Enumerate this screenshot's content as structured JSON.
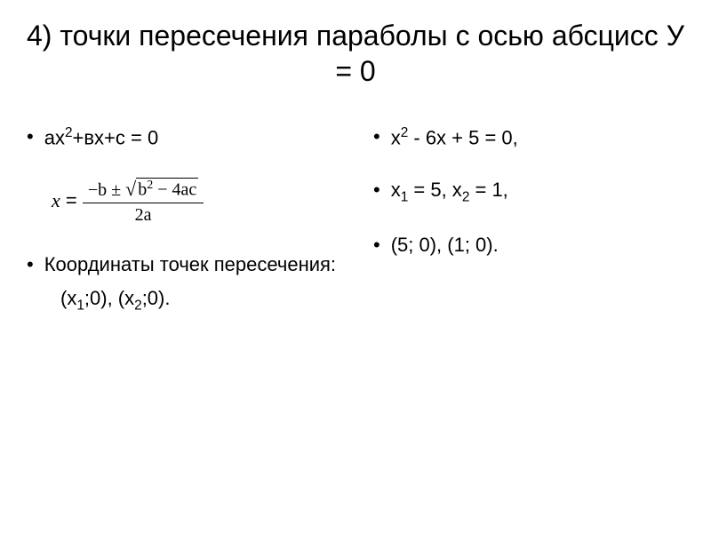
{
  "title": "4) точки пересечения параболы с осью абсцисс У = 0",
  "left": {
    "eq1_pre": "ах",
    "eq1_sup": "2",
    "eq1_post": "+вх+с = 0",
    "formula_x": "x",
    "formula_eq": " = ",
    "formula_num_prefix": "−b ± ",
    "formula_sqrt_b": "b",
    "formula_sqrt_sup": "2",
    "formula_sqrt_post": " − 4ac",
    "formula_den": "2a",
    "coord_label": "Координаты точек пересечения:",
    "coord_x1_pre": "(х",
    "coord_x1_sub": "1",
    "coord_x1_post": ";0), (х",
    "coord_x2_sub": "2",
    "coord_x2_post": ";0)."
  },
  "right": {
    "eq_pre": "х",
    "eq_sup": "2",
    "eq_post": " - 6х + 5 = 0,",
    "root_x1_pre": "х",
    "root_x1_sub": "1",
    "root_x1_mid": " = 5,  х",
    "root_x2_sub": "2",
    "root_x2_post": " =  1,",
    "points": "(5; 0), (1; 0)."
  },
  "style": {
    "bg": "#ffffff",
    "text": "#000000",
    "title_fontsize": 32,
    "body_fontsize": 22
  }
}
